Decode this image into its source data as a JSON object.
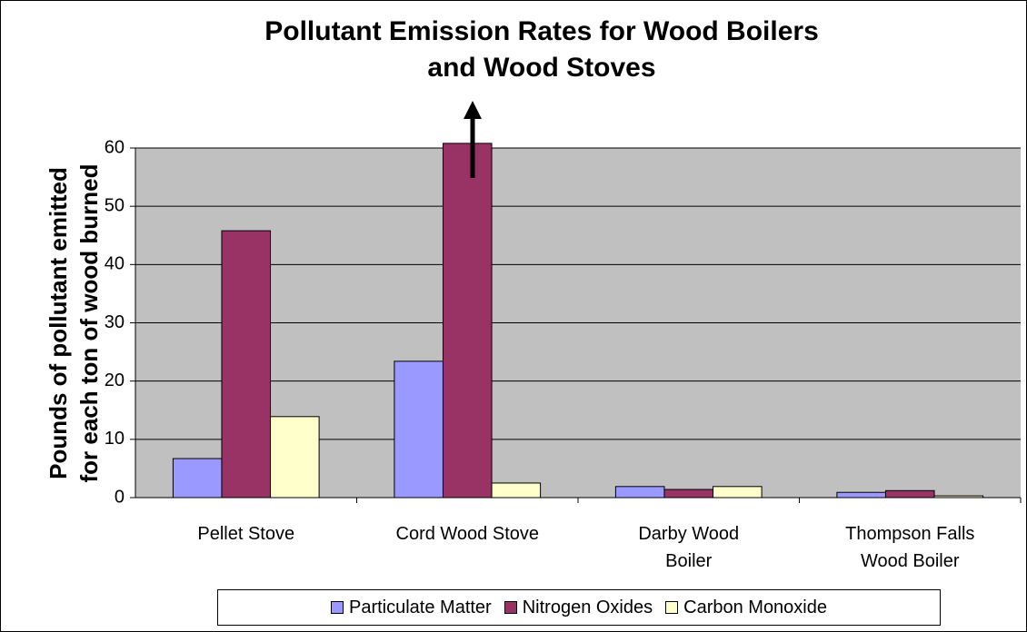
{
  "chart_data": {
    "type": "bar",
    "title": "Pollutant Emission Rates for Wood Boilers\nand Wood Stoves",
    "y_label": "Pounds of pollutant emitted\nfor each ton of wood burned",
    "categories": [
      "Pellet Stove",
      "Cord Wood Stove",
      "Darby Wood\nBoiler",
      "Thompson Falls\nWood Boiler"
    ],
    "series": [
      {
        "name": "Particulate Matter",
        "color": "#9999ff",
        "values": [
          6.7,
          23.4,
          1.9,
          0.9
        ]
      },
      {
        "name": "Nitrogen Oxides",
        "color": "#993366",
        "values": [
          45.8,
          60.8,
          1.4,
          1.2
        ]
      },
      {
        "name": "Carbon Monoxide",
        "color": "#ffffcc",
        "values": [
          13.9,
          2.5,
          1.9,
          0.3
        ]
      }
    ],
    "ylim": [
      0,
      60
    ],
    "yticks": [
      0,
      10,
      20,
      30,
      40,
      50,
      60
    ],
    "grid": true,
    "legend": "bottom"
  }
}
